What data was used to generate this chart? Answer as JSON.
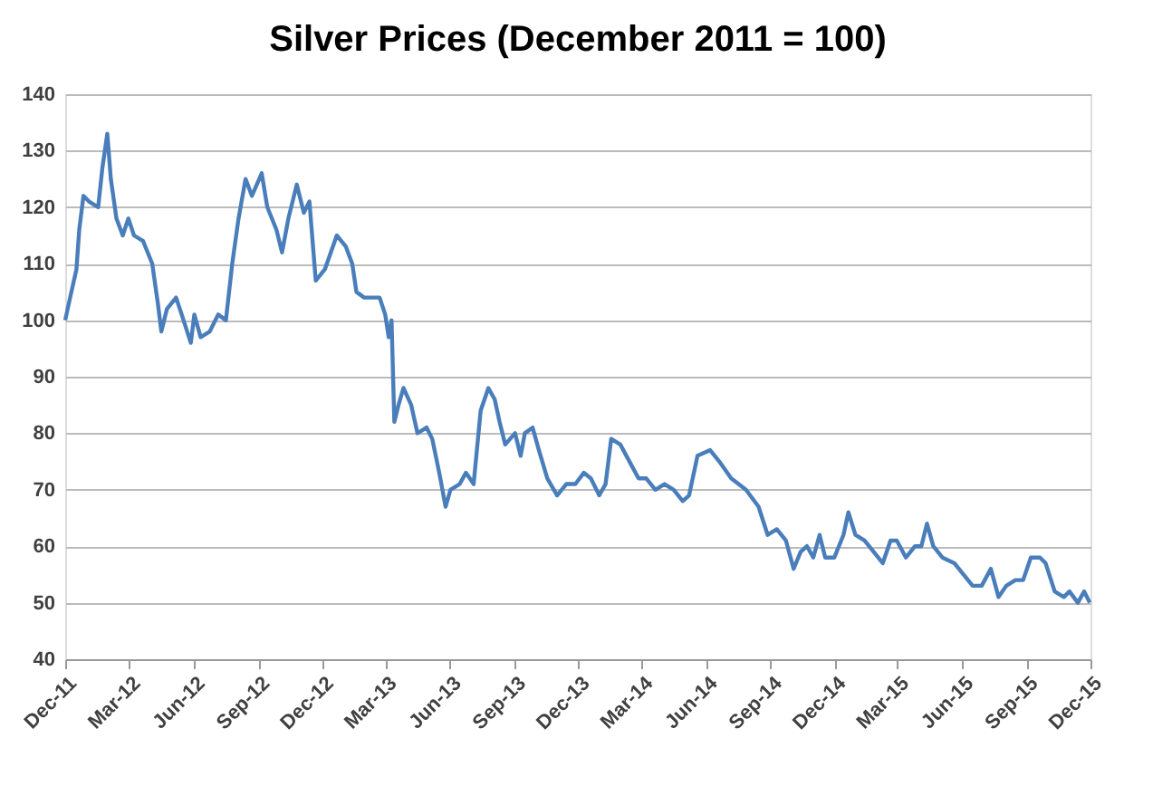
{
  "chart_data": {
    "type": "line",
    "title": "Silver Prices (December 2011 = 100)",
    "x": [
      "2011-12-01",
      "2011-12-08",
      "2011-12-17",
      "2011-12-21",
      "2011-12-27",
      "2012-01-04",
      "2012-01-17",
      "2012-01-23",
      "2012-01-30",
      "2012-02-04",
      "2012-02-12",
      "2012-02-21",
      "2012-02-29",
      "2012-03-08",
      "2012-03-21",
      "2012-04-03",
      "2012-04-11",
      "2012-04-16",
      "2012-04-24",
      "2012-05-07",
      "2012-05-15",
      "2012-05-28",
      "2012-06-02",
      "2012-06-11",
      "2012-06-24",
      "2012-07-06",
      "2012-07-17",
      "2012-07-26",
      "2012-08-04",
      "2012-08-14",
      "2012-08-23",
      "2012-09-06",
      "2012-09-14",
      "2012-09-27",
      "2012-10-05",
      "2012-10-14",
      "2012-10-26",
      "2012-11-05",
      "2012-11-13",
      "2012-11-22",
      "2012-12-05",
      "2012-12-22",
      "2013-01-04",
      "2013-01-13",
      "2013-01-19",
      "2013-01-30",
      "2013-02-21",
      "2013-03-01",
      "2013-03-06",
      "2013-03-10",
      "2013-03-14",
      "2013-03-20",
      "2013-03-27",
      "2013-04-07",
      "2013-04-16",
      "2013-04-29",
      "2013-05-07",
      "2013-05-17",
      "2013-05-26",
      "2013-06-02",
      "2013-06-15",
      "2013-06-24",
      "2013-07-05",
      "2013-07-15",
      "2013-07-26",
      "2013-08-04",
      "2013-08-11",
      "2013-08-19",
      "2013-09-02",
      "2013-09-10",
      "2013-09-16",
      "2013-09-27",
      "2013-10-06",
      "2013-10-18",
      "2013-11-01",
      "2013-11-14",
      "2013-11-27",
      "2013-12-09",
      "2013-12-19",
      "2013-12-31",
      "2014-01-09",
      "2014-01-17",
      "2014-01-30",
      "2014-02-12",
      "2014-02-25",
      "2014-03-08",
      "2014-03-21",
      "2014-04-03",
      "2014-04-16",
      "2014-04-29",
      "2014-05-08",
      "2014-05-20",
      "2014-06-07",
      "2014-06-20",
      "2014-07-07",
      "2014-07-28",
      "2014-08-15",
      "2014-08-28",
      "2014-09-10",
      "2014-09-23",
      "2014-10-04",
      "2014-10-14",
      "2014-10-23",
      "2014-11-01",
      "2014-11-10",
      "2014-11-18",
      "2014-12-01",
      "2014-12-14",
      "2014-12-21",
      "2014-12-31",
      "2015-01-13",
      "2015-01-26",
      "2015-02-08",
      "2015-02-19",
      "2015-02-28",
      "2015-03-13",
      "2015-03-26",
      "2015-04-04",
      "2015-04-12",
      "2015-04-21",
      "2015-05-04",
      "2015-05-21",
      "2015-06-03",
      "2015-06-16",
      "2015-06-29",
      "2015-07-12",
      "2015-07-23",
      "2015-08-03",
      "2015-08-16",
      "2015-08-27",
      "2015-09-07",
      "2015-09-20",
      "2015-09-28",
      "2015-10-11",
      "2015-10-24",
      "2015-11-01",
      "2015-11-13",
      "2015-11-22",
      "2015-11-30"
    ],
    "series": [
      {
        "color": "#4a7ebb",
        "values": [
          100,
          104,
          109,
          116,
          122,
          121,
          120,
          127,
          133,
          125,
          118,
          115,
          118,
          115,
          114,
          110,
          103,
          98,
          102,
          104,
          101,
          96,
          101,
          97,
          98,
          101,
          100,
          110,
          118,
          125,
          122,
          126,
          120,
          116,
          112,
          118,
          124,
          119,
          121,
          107,
          109,
          115,
          113,
          110,
          105,
          104,
          104,
          101,
          97,
          100,
          82,
          85,
          88,
          85,
          80,
          81,
          79,
          73,
          67,
          70,
          71,
          73,
          71,
          84,
          88,
          86,
          82,
          78,
          80,
          76,
          80,
          81,
          77,
          72,
          69,
          71,
          71,
          73,
          72,
          69,
          71,
          79,
          78,
          75,
          72,
          72,
          70,
          71,
          70,
          68,
          69,
          76,
          77,
          75,
          72,
          70,
          67,
          62,
          63,
          61,
          56,
          59,
          60,
          58,
          62,
          58,
          58,
          62,
          66,
          62,
          61,
          59,
          57,
          61,
          61,
          58,
          60,
          60,
          64,
          60,
          58,
          57,
          55,
          53,
          53,
          56,
          51,
          53,
          54,
          54,
          58,
          58,
          57,
          52,
          51,
          52,
          50,
          52,
          50
        ]
      }
    ],
    "xlim": [
      "2011-12-01",
      "2015-12-01"
    ],
    "xticks": [
      {
        "value": "2011-12-01",
        "label": "Dec-11"
      },
      {
        "value": "2012-03-01",
        "label": "Mar-12"
      },
      {
        "value": "2012-06-01",
        "label": "Jun-12"
      },
      {
        "value": "2012-09-01",
        "label": "Sep-12"
      },
      {
        "value": "2012-12-01",
        "label": "Dec-12"
      },
      {
        "value": "2013-03-01",
        "label": "Mar-13"
      },
      {
        "value": "2013-06-01",
        "label": "Jun-13"
      },
      {
        "value": "2013-09-01",
        "label": "Sep-13"
      },
      {
        "value": "2013-12-01",
        "label": "Dec-13"
      },
      {
        "value": "2014-03-01",
        "label": "Mar-14"
      },
      {
        "value": "2014-06-01",
        "label": "Jun-14"
      },
      {
        "value": "2014-09-01",
        "label": "Sep-14"
      },
      {
        "value": "2014-12-01",
        "label": "Dec-14"
      },
      {
        "value": "2015-03-01",
        "label": "Mar-15"
      },
      {
        "value": "2015-06-01",
        "label": "Jun-15"
      },
      {
        "value": "2015-09-01",
        "label": "Sep-15"
      },
      {
        "value": "2015-12-01",
        "label": "Dec-15"
      }
    ],
    "ylim": [
      40,
      140
    ],
    "yticks": [
      40,
      50,
      60,
      70,
      80,
      90,
      100,
      110,
      120,
      130,
      140
    ],
    "grid": "y"
  }
}
